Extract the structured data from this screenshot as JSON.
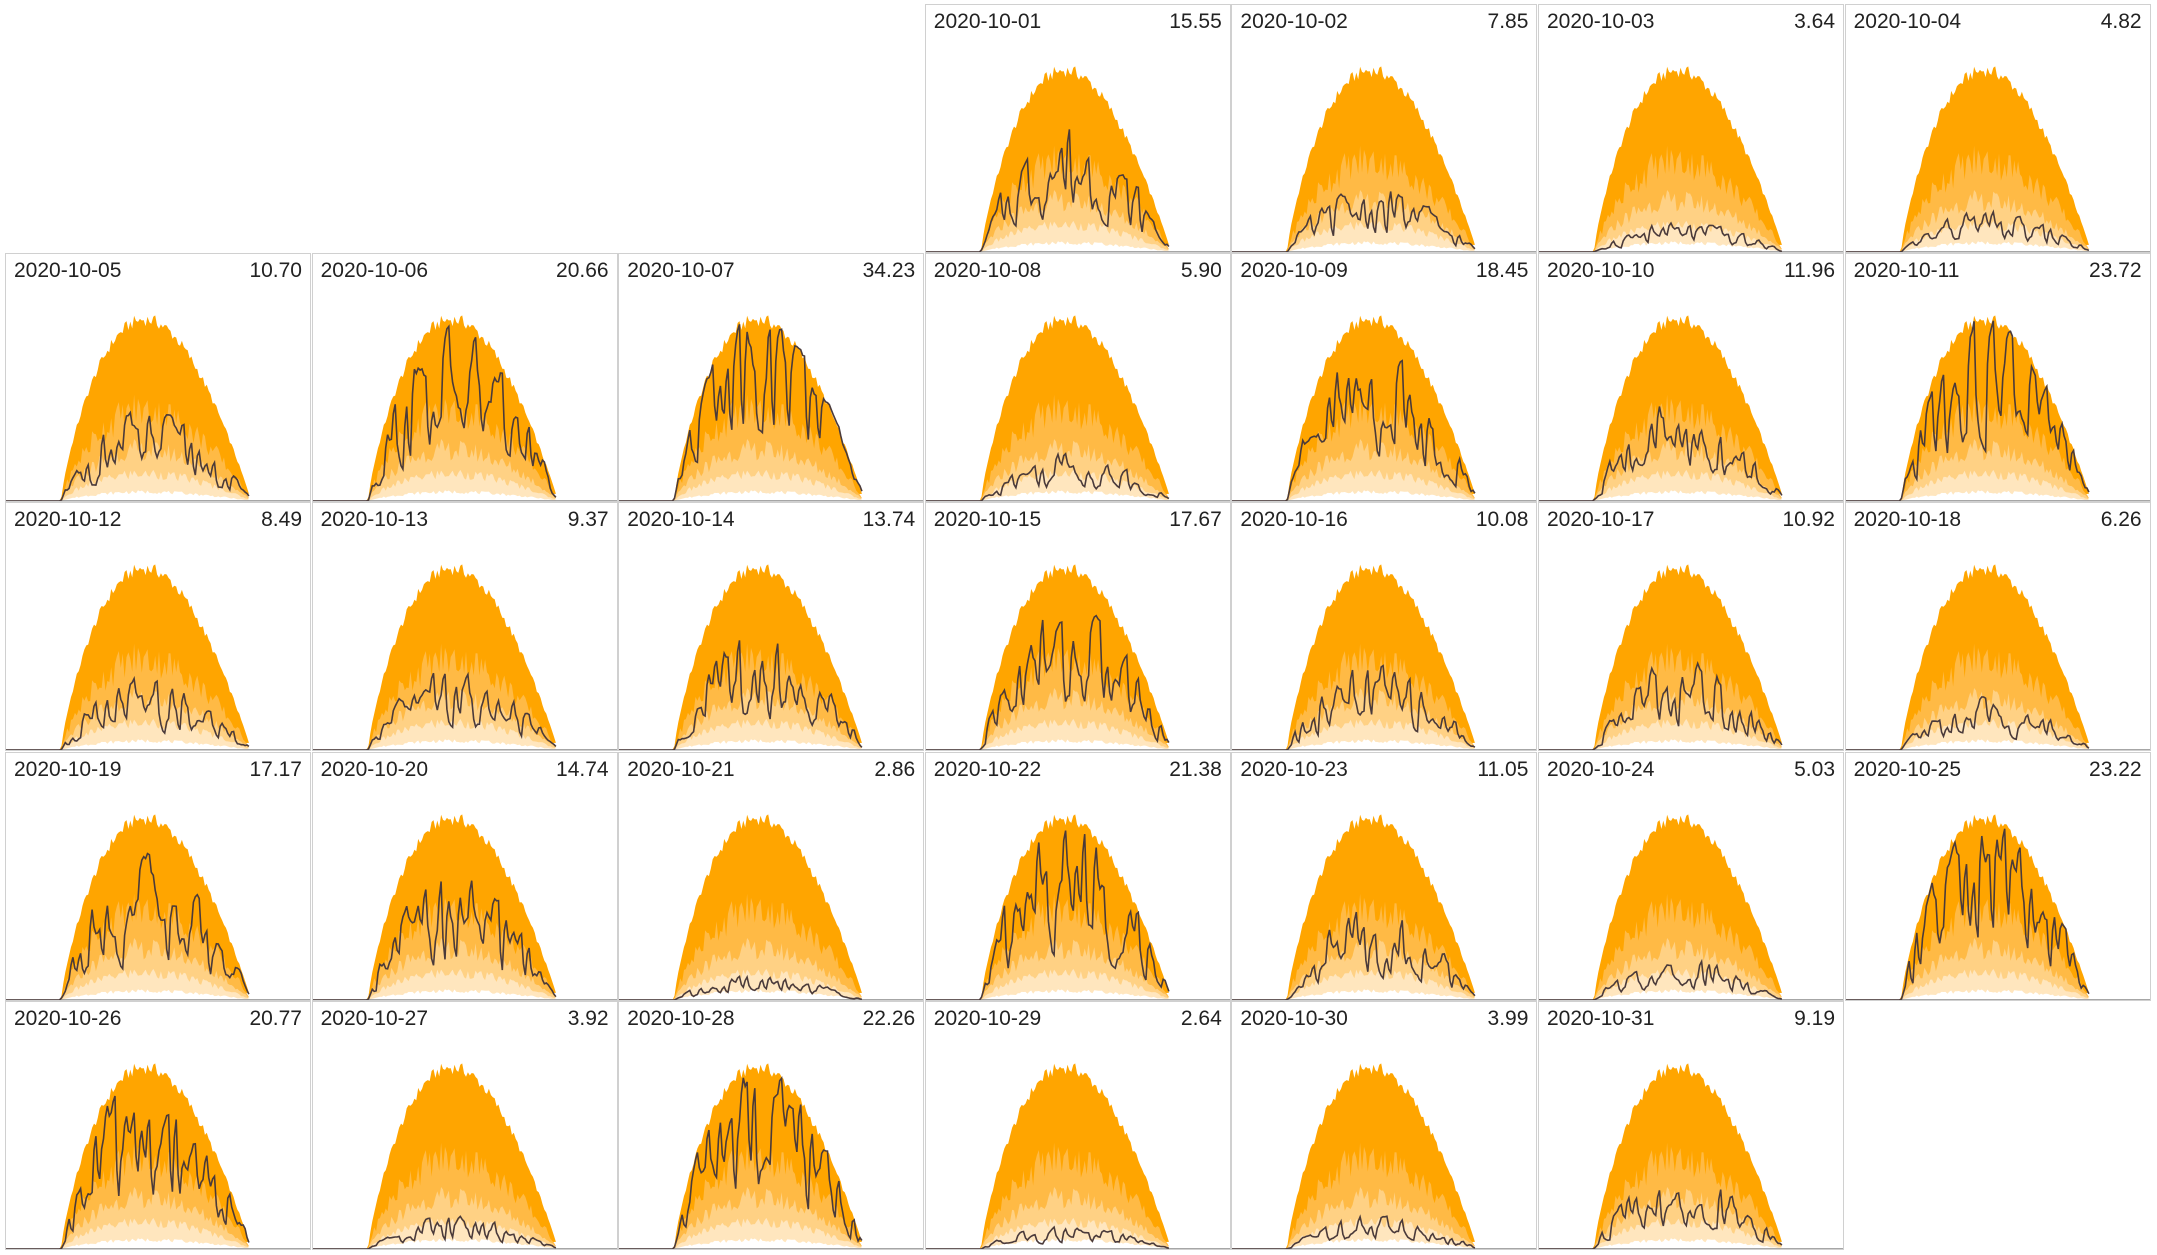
{
  "chart_data": {
    "type": "area",
    "layout": "calendar-month, weeks start Monday, 7 columns",
    "band_colors": [
      "#FFA500",
      "#FFBA45",
      "#FFD184",
      "#FFE6BE",
      "#FFFFFF"
    ],
    "line_color": "#4a3a3a",
    "days": [
      {
        "date": "2020-10-01",
        "value": "15.55"
      },
      {
        "date": "2020-10-02",
        "value": "7.85"
      },
      {
        "date": "2020-10-03",
        "value": "3.64"
      },
      {
        "date": "2020-10-04",
        "value": "4.82"
      },
      {
        "date": "2020-10-05",
        "value": "10.70"
      },
      {
        "date": "2020-10-06",
        "value": "20.66"
      },
      {
        "date": "2020-10-07",
        "value": "34.23"
      },
      {
        "date": "2020-10-08",
        "value": "5.90"
      },
      {
        "date": "2020-10-09",
        "value": "18.45"
      },
      {
        "date": "2020-10-10",
        "value": "11.96"
      },
      {
        "date": "2020-10-11",
        "value": "23.72"
      },
      {
        "date": "2020-10-12",
        "value": "8.49"
      },
      {
        "date": "2020-10-13",
        "value": "9.37"
      },
      {
        "date": "2020-10-14",
        "value": "13.74"
      },
      {
        "date": "2020-10-15",
        "value": "17.67"
      },
      {
        "date": "2020-10-16",
        "value": "10.08"
      },
      {
        "date": "2020-10-17",
        "value": "10.92"
      },
      {
        "date": "2020-10-18",
        "value": "6.26"
      },
      {
        "date": "2020-10-19",
        "value": "17.17"
      },
      {
        "date": "2020-10-20",
        "value": "14.74"
      },
      {
        "date": "2020-10-21",
        "value": "2.86"
      },
      {
        "date": "2020-10-22",
        "value": "21.38"
      },
      {
        "date": "2020-10-23",
        "value": "11.05"
      },
      {
        "date": "2020-10-24",
        "value": "5.03"
      },
      {
        "date": "2020-10-25",
        "value": "23.22"
      },
      {
        "date": "2020-10-26",
        "value": "20.77"
      },
      {
        "date": "2020-10-27",
        "value": "3.92"
      },
      {
        "date": "2020-10-28",
        "value": "22.26"
      },
      {
        "date": "2020-10-29",
        "value": "2.64"
      },
      {
        "date": "2020-10-30",
        "value": "3.99"
      },
      {
        "date": "2020-10-31",
        "value": "9.19"
      }
    ]
  }
}
